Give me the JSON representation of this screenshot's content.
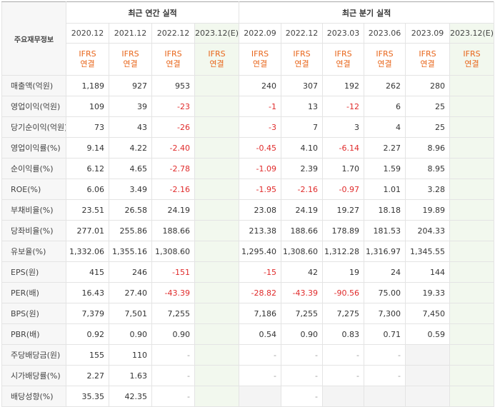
{
  "header": {
    "row_label": "주요재무정보",
    "annual_title": "최근 연간 실적",
    "quarter_title": "최근 분기 실적",
    "annual_periods": [
      "2020.12",
      "2021.12",
      "2022.12",
      "2023.12(E)"
    ],
    "quarter_periods": [
      "2022.09",
      "2022.12",
      "2023.03",
      "2023.06",
      "2023.09",
      "2023.12(E)"
    ],
    "ifrs_line1": "IFRS",
    "ifrs_line2": "연결"
  },
  "rows": [
    {
      "label": "매출액(억원)",
      "annual": [
        "1,189",
        "927",
        "953",
        ""
      ],
      "quarter": [
        "240",
        "307",
        "192",
        "262",
        "280",
        ""
      ]
    },
    {
      "label": "영업이익(억원)",
      "annual": [
        "109",
        "39",
        "-23",
        ""
      ],
      "quarter": [
        "-1",
        "13",
        "-12",
        "6",
        "25",
        ""
      ]
    },
    {
      "label": "당기순이익(억원)",
      "annual": [
        "73",
        "43",
        "-26",
        ""
      ],
      "quarter": [
        "-3",
        "7",
        "3",
        "4",
        "25",
        ""
      ]
    },
    {
      "label": "영업이익률(%)",
      "annual": [
        "9.14",
        "4.22",
        "-2.40",
        ""
      ],
      "quarter": [
        "-0.45",
        "4.10",
        "-6.14",
        "2.27",
        "8.96",
        ""
      ]
    },
    {
      "label": "순이익률(%)",
      "annual": [
        "6.12",
        "4.65",
        "-2.78",
        ""
      ],
      "quarter": [
        "-1.09",
        "2.39",
        "1.70",
        "1.59",
        "8.95",
        ""
      ]
    },
    {
      "label": "ROE(%)",
      "annual": [
        "6.06",
        "3.49",
        "-2.16",
        ""
      ],
      "quarter": [
        "-1.95",
        "-2.16",
        "-0.97",
        "1.01",
        "3.28",
        ""
      ]
    },
    {
      "label": "부채비율(%)",
      "annual": [
        "23.51",
        "26.58",
        "24.19",
        ""
      ],
      "quarter": [
        "23.08",
        "24.19",
        "19.27",
        "18.18",
        "19.89",
        ""
      ]
    },
    {
      "label": "당좌비율(%)",
      "annual": [
        "277.01",
        "255.86",
        "188.66",
        ""
      ],
      "quarter": [
        "213.38",
        "188.66",
        "178.89",
        "181.53",
        "204.33",
        ""
      ]
    },
    {
      "label": "유보율(%)",
      "annual": [
        "1,332.06",
        "1,355.16",
        "1,308.60",
        ""
      ],
      "quarter": [
        "1,295.40",
        "1,308.60",
        "1,312.28",
        "1,316.97",
        "1,345.55",
        ""
      ]
    },
    {
      "label": "EPS(원)",
      "annual": [
        "415",
        "246",
        "-151",
        ""
      ],
      "quarter": [
        "-15",
        "42",
        "19",
        "24",
        "144",
        ""
      ]
    },
    {
      "label": "PER(배)",
      "annual": [
        "16.43",
        "27.40",
        "-43.39",
        ""
      ],
      "quarter": [
        "-28.82",
        "-43.39",
        "-90.56",
        "75.00",
        "19.33",
        ""
      ]
    },
    {
      "label": "BPS(원)",
      "annual": [
        "7,379",
        "7,501",
        "7,255",
        ""
      ],
      "quarter": [
        "7,186",
        "7,255",
        "7,275",
        "7,300",
        "7,450",
        ""
      ]
    },
    {
      "label": "PBR(배)",
      "annual": [
        "0.92",
        "0.90",
        "0.90",
        ""
      ],
      "quarter": [
        "0.54",
        "0.90",
        "0.83",
        "0.71",
        "0.59",
        ""
      ]
    },
    {
      "label": "주당배당금(원)",
      "annual": [
        "155",
        "110",
        "-",
        ""
      ],
      "quarter": [
        "-",
        "-",
        "-",
        "-",
        "",
        ""
      ]
    },
    {
      "label": "시가배당률(%)",
      "annual": [
        "2.27",
        "1.63",
        "-",
        ""
      ],
      "quarter": [
        "-",
        "-",
        "-",
        "-",
        "",
        ""
      ]
    },
    {
      "label": "배당성향(%)",
      "annual": [
        "35.35",
        "42.35",
        "-",
        ""
      ],
      "quarter": [
        "",
        "-",
        "",
        "",
        "",
        ""
      ]
    }
  ],
  "colors": {
    "negative": "#e02b2b",
    "ifrs": "#e8651a",
    "estimate_bg": "#f2f8ee",
    "estimate_text": "#4a8f3a"
  }
}
